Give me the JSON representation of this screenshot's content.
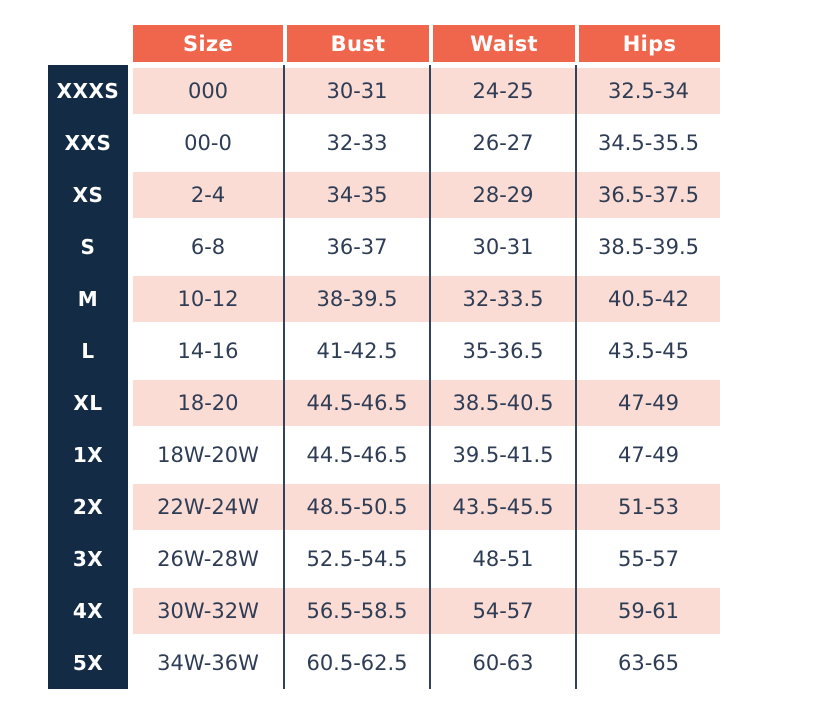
{
  "table": {
    "columns": [
      "Size",
      "Bust",
      "Waist",
      "Hips"
    ],
    "rows": [
      {
        "label": "XXXS",
        "size": "000",
        "bust": "30-31",
        "waist": "24-25",
        "hips": "32.5-34"
      },
      {
        "label": "XXS",
        "size": "00-0",
        "bust": "32-33",
        "waist": "26-27",
        "hips": "34.5-35.5"
      },
      {
        "label": "XS",
        "size": "2-4",
        "bust": "34-35",
        "waist": "28-29",
        "hips": "36.5-37.5"
      },
      {
        "label": "S",
        "size": "6-8",
        "bust": "36-37",
        "waist": "30-31",
        "hips": "38.5-39.5"
      },
      {
        "label": "M",
        "size": "10-12",
        "bust": "38-39.5",
        "waist": "32-33.5",
        "hips": "40.5-42"
      },
      {
        "label": "L",
        "size": "14-16",
        "bust": "41-42.5",
        "waist": "35-36.5",
        "hips": "43.5-45"
      },
      {
        "label": "XL",
        "size": "18-20",
        "bust": "44.5-46.5",
        "waist": "38.5-40.5",
        "hips": "47-49"
      },
      {
        "label": "1X",
        "size": "18W-20W",
        "bust": "44.5-46.5",
        "waist": "39.5-41.5",
        "hips": "47-49"
      },
      {
        "label": "2X",
        "size": "22W-24W",
        "bust": "48.5-50.5",
        "waist": "43.5-45.5",
        "hips": "51-53"
      },
      {
        "label": "3X",
        "size": "26W-28W",
        "bust": "52.5-54.5",
        "waist": "48-51",
        "hips": "55-57"
      },
      {
        "label": "4X",
        "size": "30W-32W",
        "bust": "56.5-58.5",
        "waist": "54-57",
        "hips": "59-61"
      },
      {
        "label": "5X",
        "size": "34W-36W",
        "bust": "60.5-62.5",
        "waist": "60-63",
        "hips": "63-65"
      }
    ]
  },
  "colors": {
    "header_bg": "#F0664C",
    "sidebar_bg": "#132B45",
    "row_pink": "#FADCD4",
    "text_navy": "#2E3D55",
    "separator_navy": "#33425C"
  }
}
